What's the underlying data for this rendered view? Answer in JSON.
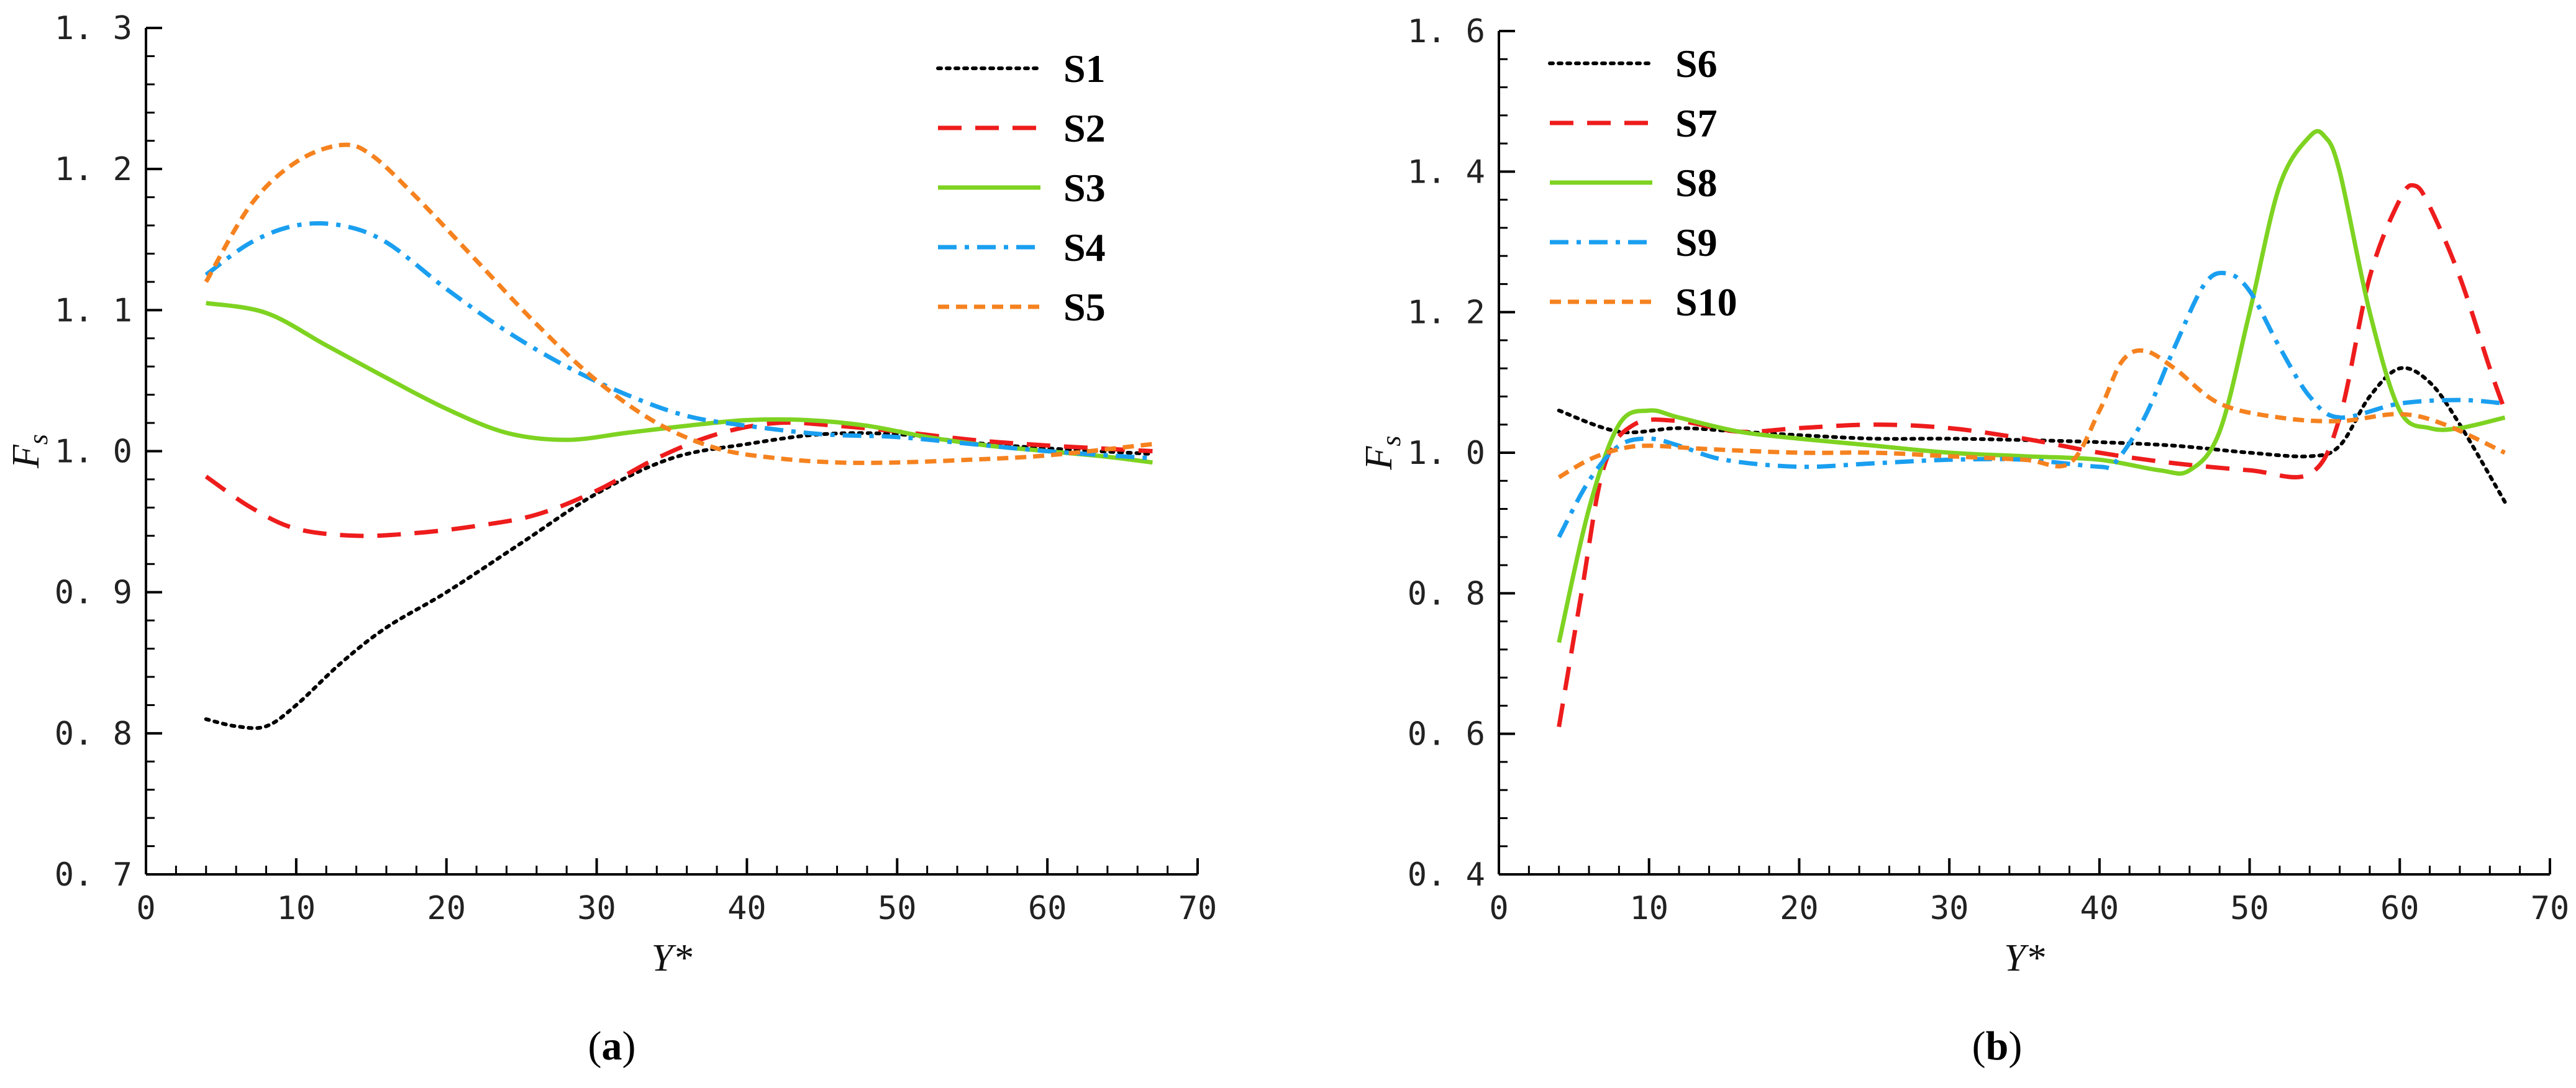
{
  "chart_data": [
    {
      "type": "line",
      "panel_label": "a",
      "xlabel": "Y*",
      "ylabel": "F",
      "ylabel_subscript": "s",
      "xlim": [
        0,
        70
      ],
      "ylim": [
        0.7,
        1.3
      ],
      "xticks": [
        0,
        10,
        20,
        30,
        40,
        50,
        60,
        70
      ],
      "yticks": [
        0.7,
        0.8,
        0.9,
        1.0,
        1.1,
        1.2,
        1.3
      ],
      "ytick_labels": [
        "0. 7",
        "0. 8",
        "0. 9",
        "1. 0",
        "1. 1",
        "1. 2",
        "1. 3"
      ],
      "xtick_labels": [
        "0",
        "10",
        "20",
        "30",
        "40",
        "50",
        "60",
        "70"
      ],
      "legend_position": "top-right",
      "series": [
        {
          "name": "S1",
          "color": "#000000",
          "style": "dotted",
          "x": [
            4,
            6,
            8,
            10,
            13,
            16,
            20,
            25,
            30,
            35,
            40,
            45,
            50,
            55,
            60,
            67
          ],
          "y": [
            0.81,
            0.805,
            0.805,
            0.82,
            0.85,
            0.875,
            0.9,
            0.935,
            0.97,
            0.995,
            1.005,
            1.012,
            1.012,
            1.006,
            1.002,
            0.998
          ]
        },
        {
          "name": "S2",
          "color": "#ee1c1c",
          "style": "dashed",
          "x": [
            4,
            7,
            10,
            14,
            18,
            22,
            26,
            30,
            34,
            38,
            42,
            46,
            50,
            55,
            60,
            67
          ],
          "y": [
            0.982,
            0.96,
            0.945,
            0.94,
            0.942,
            0.947,
            0.955,
            0.972,
            0.995,
            1.012,
            1.02,
            1.018,
            1.014,
            1.008,
            1.004,
            1.0
          ]
        },
        {
          "name": "S3",
          "color": "#7ed321",
          "style": "solid",
          "x": [
            4,
            8,
            12,
            16,
            20,
            24,
            28,
            32,
            36,
            40,
            44,
            48,
            52,
            56,
            60,
            64,
            67
          ],
          "y": [
            1.105,
            1.098,
            1.075,
            1.052,
            1.03,
            1.013,
            1.008,
            1.013,
            1.018,
            1.022,
            1.022,
            1.018,
            1.01,
            1.004,
            1.0,
            0.996,
            0.992
          ]
        },
        {
          "name": "S4",
          "color": "#1a9ff0",
          "style": "dashdot",
          "x": [
            4,
            7,
            10,
            13,
            16,
            20,
            24,
            28,
            32,
            36,
            40,
            45,
            50,
            55,
            60,
            67
          ],
          "y": [
            1.125,
            1.148,
            1.16,
            1.16,
            1.148,
            1.115,
            1.085,
            1.06,
            1.04,
            1.025,
            1.018,
            1.012,
            1.01,
            1.005,
            1.0,
            0.995
          ]
        },
        {
          "name": "S5",
          "color": "#f5821f",
          "style": "shortdash",
          "x": [
            4,
            7,
            10,
            13,
            15,
            18,
            22,
            26,
            30,
            34,
            38,
            42,
            46,
            50,
            55,
            60,
            67
          ],
          "y": [
            1.12,
            1.175,
            1.205,
            1.217,
            1.21,
            1.18,
            1.135,
            1.09,
            1.05,
            1.02,
            1.002,
            0.995,
            0.992,
            0.992,
            0.994,
            0.997,
            1.005
          ]
        }
      ]
    },
    {
      "type": "line",
      "panel_label": "b",
      "xlabel": "Y*",
      "ylabel": "F",
      "ylabel_subscript": "s",
      "xlim": [
        0,
        70
      ],
      "ylim": [
        0.4,
        1.6
      ],
      "xticks": [
        0,
        10,
        20,
        30,
        40,
        50,
        60,
        70
      ],
      "yticks": [
        0.4,
        0.6,
        0.8,
        1.0,
        1.2,
        1.4,
        1.6
      ],
      "ytick_labels": [
        "0. 4",
        "0. 6",
        "0. 8",
        "1. 0",
        "1. 2",
        "1. 4",
        "1. 6"
      ],
      "xtick_labels": [
        "0",
        "10",
        "20",
        "30",
        "40",
        "50",
        "60",
        "70"
      ],
      "legend_position": "top-left",
      "series": [
        {
          "name": "S6",
          "color": "#000000",
          "style": "dotted",
          "x": [
            4,
            8,
            12,
            16,
            20,
            25,
            30,
            35,
            40,
            45,
            50,
            54,
            56,
            58,
            60,
            62,
            64,
            67
          ],
          "y": [
            1.06,
            1.03,
            1.035,
            1.03,
            1.025,
            1.02,
            1.02,
            1.018,
            1.015,
            1.01,
            1.0,
            0.995,
            1.01,
            1.08,
            1.12,
            1.1,
            1.04,
            0.93
          ]
        },
        {
          "name": "S7",
          "color": "#ee1c1c",
          "style": "dashed",
          "x": [
            4,
            5.5,
            7,
            9,
            12,
            16,
            20,
            25,
            30,
            35,
            40,
            45,
            50,
            54,
            56,
            58,
            60,
            61,
            62,
            64,
            66,
            67
          ],
          "y": [
            0.61,
            0.8,
            0.98,
            1.04,
            1.045,
            1.03,
            1.035,
            1.04,
            1.035,
            1.02,
            1.0,
            0.985,
            0.975,
            0.97,
            1.05,
            1.25,
            1.36,
            1.38,
            1.35,
            1.25,
            1.12,
            1.06
          ]
        },
        {
          "name": "S8",
          "color": "#7ed321",
          "style": "solid",
          "x": [
            4,
            6,
            8,
            10,
            12,
            16,
            20,
            25,
            30,
            35,
            40,
            44,
            46,
            48,
            50,
            52,
            54,
            55,
            56,
            58,
            60,
            62,
            64,
            67
          ],
          "y": [
            0.73,
            0.92,
            1.04,
            1.06,
            1.05,
            1.03,
            1.02,
            1.01,
            1.0,
            0.995,
            0.99,
            0.975,
            0.975,
            1.03,
            1.2,
            1.38,
            1.45,
            1.45,
            1.4,
            1.2,
            1.06,
            1.035,
            1.035,
            1.05
          ]
        },
        {
          "name": "S9",
          "color": "#1a9ff0",
          "style": "dashdot",
          "x": [
            4,
            6,
            8,
            10,
            12,
            15,
            20,
            25,
            30,
            35,
            40,
            41,
            43,
            45,
            47,
            48.5,
            50,
            52,
            54,
            56,
            60,
            64,
            67
          ],
          "y": [
            0.88,
            0.96,
            1.01,
            1.02,
            1.01,
            0.99,
            0.98,
            0.985,
            0.99,
            0.99,
            0.98,
            0.985,
            1.05,
            1.15,
            1.24,
            1.255,
            1.23,
            1.15,
            1.08,
            1.05,
            1.07,
            1.075,
            1.07
          ]
        },
        {
          "name": "S10",
          "color": "#f5821f",
          "style": "shortdash",
          "x": [
            4,
            6,
            8,
            10,
            14,
            20,
            25,
            30,
            35,
            38,
            40,
            41.5,
            43,
            45,
            48,
            52,
            56,
            60,
            63,
            67
          ],
          "y": [
            0.965,
            0.99,
            1.005,
            1.01,
            1.005,
            1.0,
            1.0,
            0.995,
            0.99,
            0.985,
            1.06,
            1.13,
            1.145,
            1.12,
            1.07,
            1.05,
            1.045,
            1.055,
            1.04,
            1.0
          ]
        }
      ]
    }
  ]
}
